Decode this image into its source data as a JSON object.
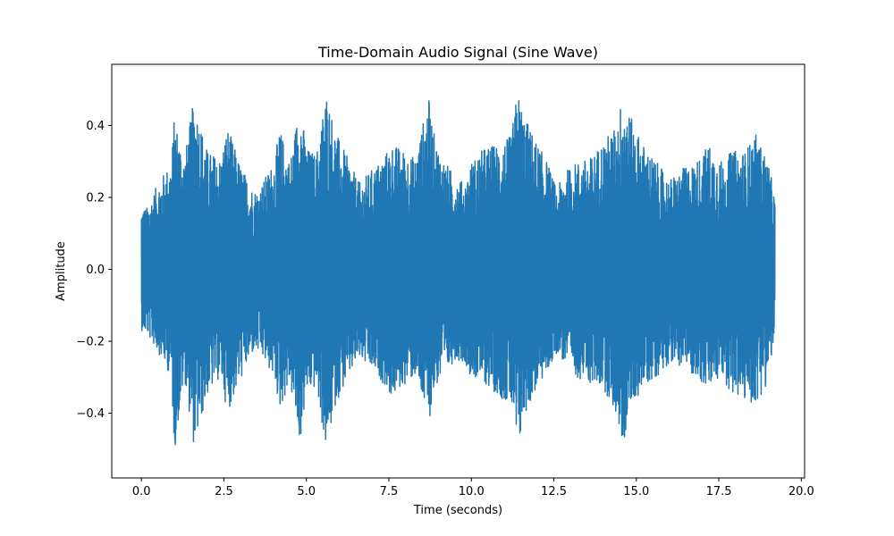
{
  "chart_data": {
    "type": "line",
    "title": "Time-Domain Audio Signal (Sine Wave)",
    "xlabel": "Time (seconds)",
    "ylabel": "Amplitude",
    "xlim": [
      -0.9,
      20.1
    ],
    "ylim": [
      -0.58,
      0.57
    ],
    "x_ticks": [
      0.0,
      2.5,
      5.0,
      7.5,
      10.0,
      12.5,
      15.0,
      17.5,
      20.0
    ],
    "x_tick_labels": [
      "0.0",
      "2.5",
      "5.0",
      "7.5",
      "10.0",
      "12.5",
      "15.0",
      "17.5",
      "20.0"
    ],
    "y_ticks": [
      -0.4,
      -0.2,
      0.0,
      0.2,
      0.4
    ],
    "y_tick_labels": [
      "−0.4",
      "−0.2",
      "0.0",
      "0.2",
      "0.4"
    ],
    "grid": false,
    "legend": "none",
    "series": [
      {
        "color": "#1f77b4",
        "x_start": 0.0,
        "x_end": 19.2,
        "envelope": {
          "x": [
            0.0,
            0.15,
            0.5,
            0.9,
            1.0,
            1.3,
            1.6,
            2.0,
            2.4,
            2.6,
            3.0,
            3.4,
            3.6,
            4.0,
            4.2,
            4.5,
            4.8,
            5.0,
            5.3,
            5.6,
            5.9,
            6.3,
            6.6,
            6.9,
            7.2,
            7.6,
            8.0,
            8.3,
            8.7,
            8.9,
            9.2,
            9.5,
            9.8,
            10.0,
            10.4,
            10.8,
            11.2,
            11.4,
            11.6,
            12.0,
            12.3,
            12.6,
            12.8,
            13.2,
            13.6,
            14.0,
            14.4,
            14.6,
            14.8,
            15.2,
            15.6,
            16.0,
            16.4,
            16.8,
            17.2,
            17.6,
            17.9,
            18.3,
            18.6,
            19.0,
            19.2
          ],
          "pos": [
            0.18,
            0.17,
            0.24,
            0.3,
            0.43,
            0.31,
            0.48,
            0.33,
            0.31,
            0.4,
            0.29,
            0.22,
            0.23,
            0.3,
            0.39,
            0.3,
            0.47,
            0.34,
            0.32,
            0.5,
            0.38,
            0.3,
            0.24,
            0.27,
            0.3,
            0.35,
            0.33,
            0.31,
            0.48,
            0.36,
            0.3,
            0.26,
            0.24,
            0.3,
            0.34,
            0.35,
            0.37,
            0.5,
            0.43,
            0.35,
            0.3,
            0.22,
            0.27,
            0.3,
            0.31,
            0.36,
            0.4,
            0.5,
            0.43,
            0.35,
            0.3,
            0.25,
            0.28,
            0.3,
            0.35,
            0.3,
            0.33,
            0.33,
            0.38,
            0.3,
            0.2
          ],
          "neg": [
            -0.17,
            -0.18,
            -0.23,
            -0.3,
            -0.51,
            -0.3,
            -0.5,
            -0.35,
            -0.3,
            -0.4,
            -0.31,
            -0.23,
            -0.24,
            -0.3,
            -0.39,
            -0.32,
            -0.49,
            -0.35,
            -0.33,
            -0.51,
            -0.37,
            -0.3,
            -0.25,
            -0.28,
            -0.3,
            -0.36,
            -0.32,
            -0.3,
            -0.43,
            -0.33,
            -0.3,
            -0.25,
            -0.26,
            -0.3,
            -0.32,
            -0.35,
            -0.38,
            -0.53,
            -0.41,
            -0.33,
            -0.29,
            -0.23,
            -0.26,
            -0.3,
            -0.32,
            -0.33,
            -0.41,
            -0.5,
            -0.39,
            -0.33,
            -0.3,
            -0.26,
            -0.27,
            -0.3,
            -0.34,
            -0.3,
            -0.35,
            -0.37,
            -0.38,
            -0.31,
            -0.18
          ]
        }
      }
    ]
  }
}
